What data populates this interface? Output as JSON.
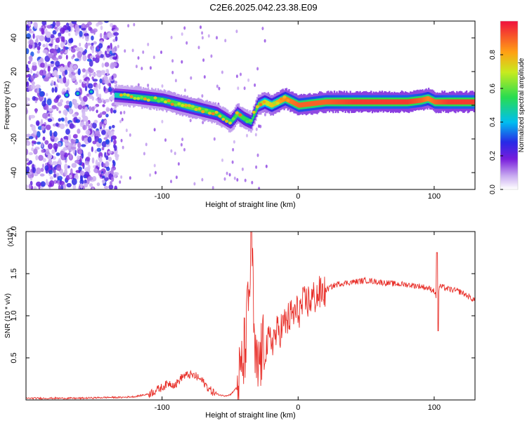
{
  "title": "C2E6.2025.042.23.38.E09",
  "colors": {
    "snr_line": "#e8302a",
    "noise_purple": "#7a2be0",
    "axis": "#000000"
  },
  "colorbar": {
    "label": "Normalized spectral amplitude",
    "ticks": [
      {
        "v": 0.0,
        "label": "0.0"
      },
      {
        "v": 0.2,
        "label": "0.2"
      },
      {
        "v": 0.4,
        "label": "0.4"
      },
      {
        "v": 0.6,
        "label": "0.6"
      },
      {
        "v": 0.8,
        "label": "0.8"
      }
    ],
    "range": [
      0,
      1
    ]
  },
  "chart_data": [
    {
      "type": "heatmap",
      "xlabel": "Height of straight line (km)",
      "ylabel": "Frequency (Hz)",
      "xlim": [
        -200,
        130
      ],
      "ylim": [
        -50,
        50
      ],
      "xticks": [
        {
          "v": -100,
          "label": "-100"
        },
        {
          "v": 0,
          "label": "0"
        },
        {
          "v": 100,
          "label": "100"
        }
      ],
      "yticks": [
        {
          "v": -40,
          "label": "-40"
        },
        {
          "v": -20,
          "label": "-20"
        },
        {
          "v": 0,
          "label": "0"
        },
        {
          "v": 20,
          "label": "20"
        },
        {
          "v": 40,
          "label": "40"
        }
      ],
      "colormap": "rainbow (white-purple-blue-cyan-green-yellow-red)",
      "noise_region_x": [
        -200,
        -133
      ],
      "ridge": {
        "x": [
          -135,
          -120,
          -100,
          -80,
          -60,
          -50,
          -45,
          -40,
          -35,
          -30,
          -25,
          -20,
          -10,
          0,
          10,
          20,
          40,
          60,
          80,
          90,
          95,
          100,
          110,
          130
        ],
        "y": [
          6,
          5,
          3,
          -1,
          -5,
          -10,
          -5,
          -8,
          -10,
          0,
          2,
          0,
          4,
          0,
          1,
          2,
          2,
          2,
          2,
          3,
          4,
          2,
          2,
          2
        ],
        "amplitude": [
          0.45,
          0.5,
          0.55,
          0.6,
          0.55,
          0.5,
          0.6,
          0.55,
          0.5,
          0.6,
          0.7,
          0.75,
          0.85,
          0.9,
          0.9,
          0.9,
          0.95,
          0.95,
          0.95,
          0.9,
          0.85,
          0.9,
          0.95,
          0.95
        ]
      }
    },
    {
      "type": "line",
      "xlabel": "Height of straight line (km)",
      "ylabel": "SNR (10 * v/v)",
      "ylabel_exponent": "(x10",
      "ylabel_exponent_power": "4",
      "ylabel_exponent_close": ")",
      "xlim": [
        -200,
        130
      ],
      "ylim": [
        0,
        2.0
      ],
      "xticks": [
        {
          "v": -100,
          "label": "-100"
        },
        {
          "v": 0,
          "label": "0"
        },
        {
          "v": 100,
          "label": "100"
        }
      ],
      "yticks": [
        {
          "v": 0.5,
          "label": "0.5"
        },
        {
          "v": 1.0,
          "label": "1.0"
        },
        {
          "v": 1.5,
          "label": "1.5"
        },
        {
          "v": 2.0,
          "label": "2.0"
        }
      ],
      "series": [
        {
          "x": [
            -200,
            -180,
            -160,
            -140,
            -130,
            -120,
            -110,
            -100,
            -95,
            -90,
            -85,
            -80,
            -75,
            -70,
            -65,
            -60,
            -55,
            -50,
            -45,
            -42,
            -40,
            -38,
            -36,
            -34,
            -32,
            -30,
            -28,
            -25,
            -20,
            -15,
            -10,
            -5,
            0,
            5,
            10,
            15,
            20,
            25,
            30,
            40,
            50,
            60,
            70,
            80,
            90,
            95,
            100,
            102,
            104,
            110,
            120,
            130
          ],
          "y": [
            0.02,
            0.02,
            0.02,
            0.03,
            0.03,
            0.04,
            0.07,
            0.15,
            0.2,
            0.18,
            0.28,
            0.3,
            0.28,
            0.22,
            0.12,
            0.07,
            0.05,
            0.06,
            0.15,
            0.3,
            0.5,
            0.8,
            1.3,
            1.8,
            0.5,
            0.3,
            0.5,
            0.6,
            0.7,
            0.8,
            0.9,
            1.0,
            1.05,
            1.15,
            1.2,
            1.25,
            1.3,
            1.35,
            1.38,
            1.4,
            1.42,
            1.4,
            1.38,
            1.37,
            1.35,
            1.33,
            1.3,
            1.2,
            1.35,
            1.32,
            1.28,
            1.18
          ]
        }
      ]
    }
  ]
}
